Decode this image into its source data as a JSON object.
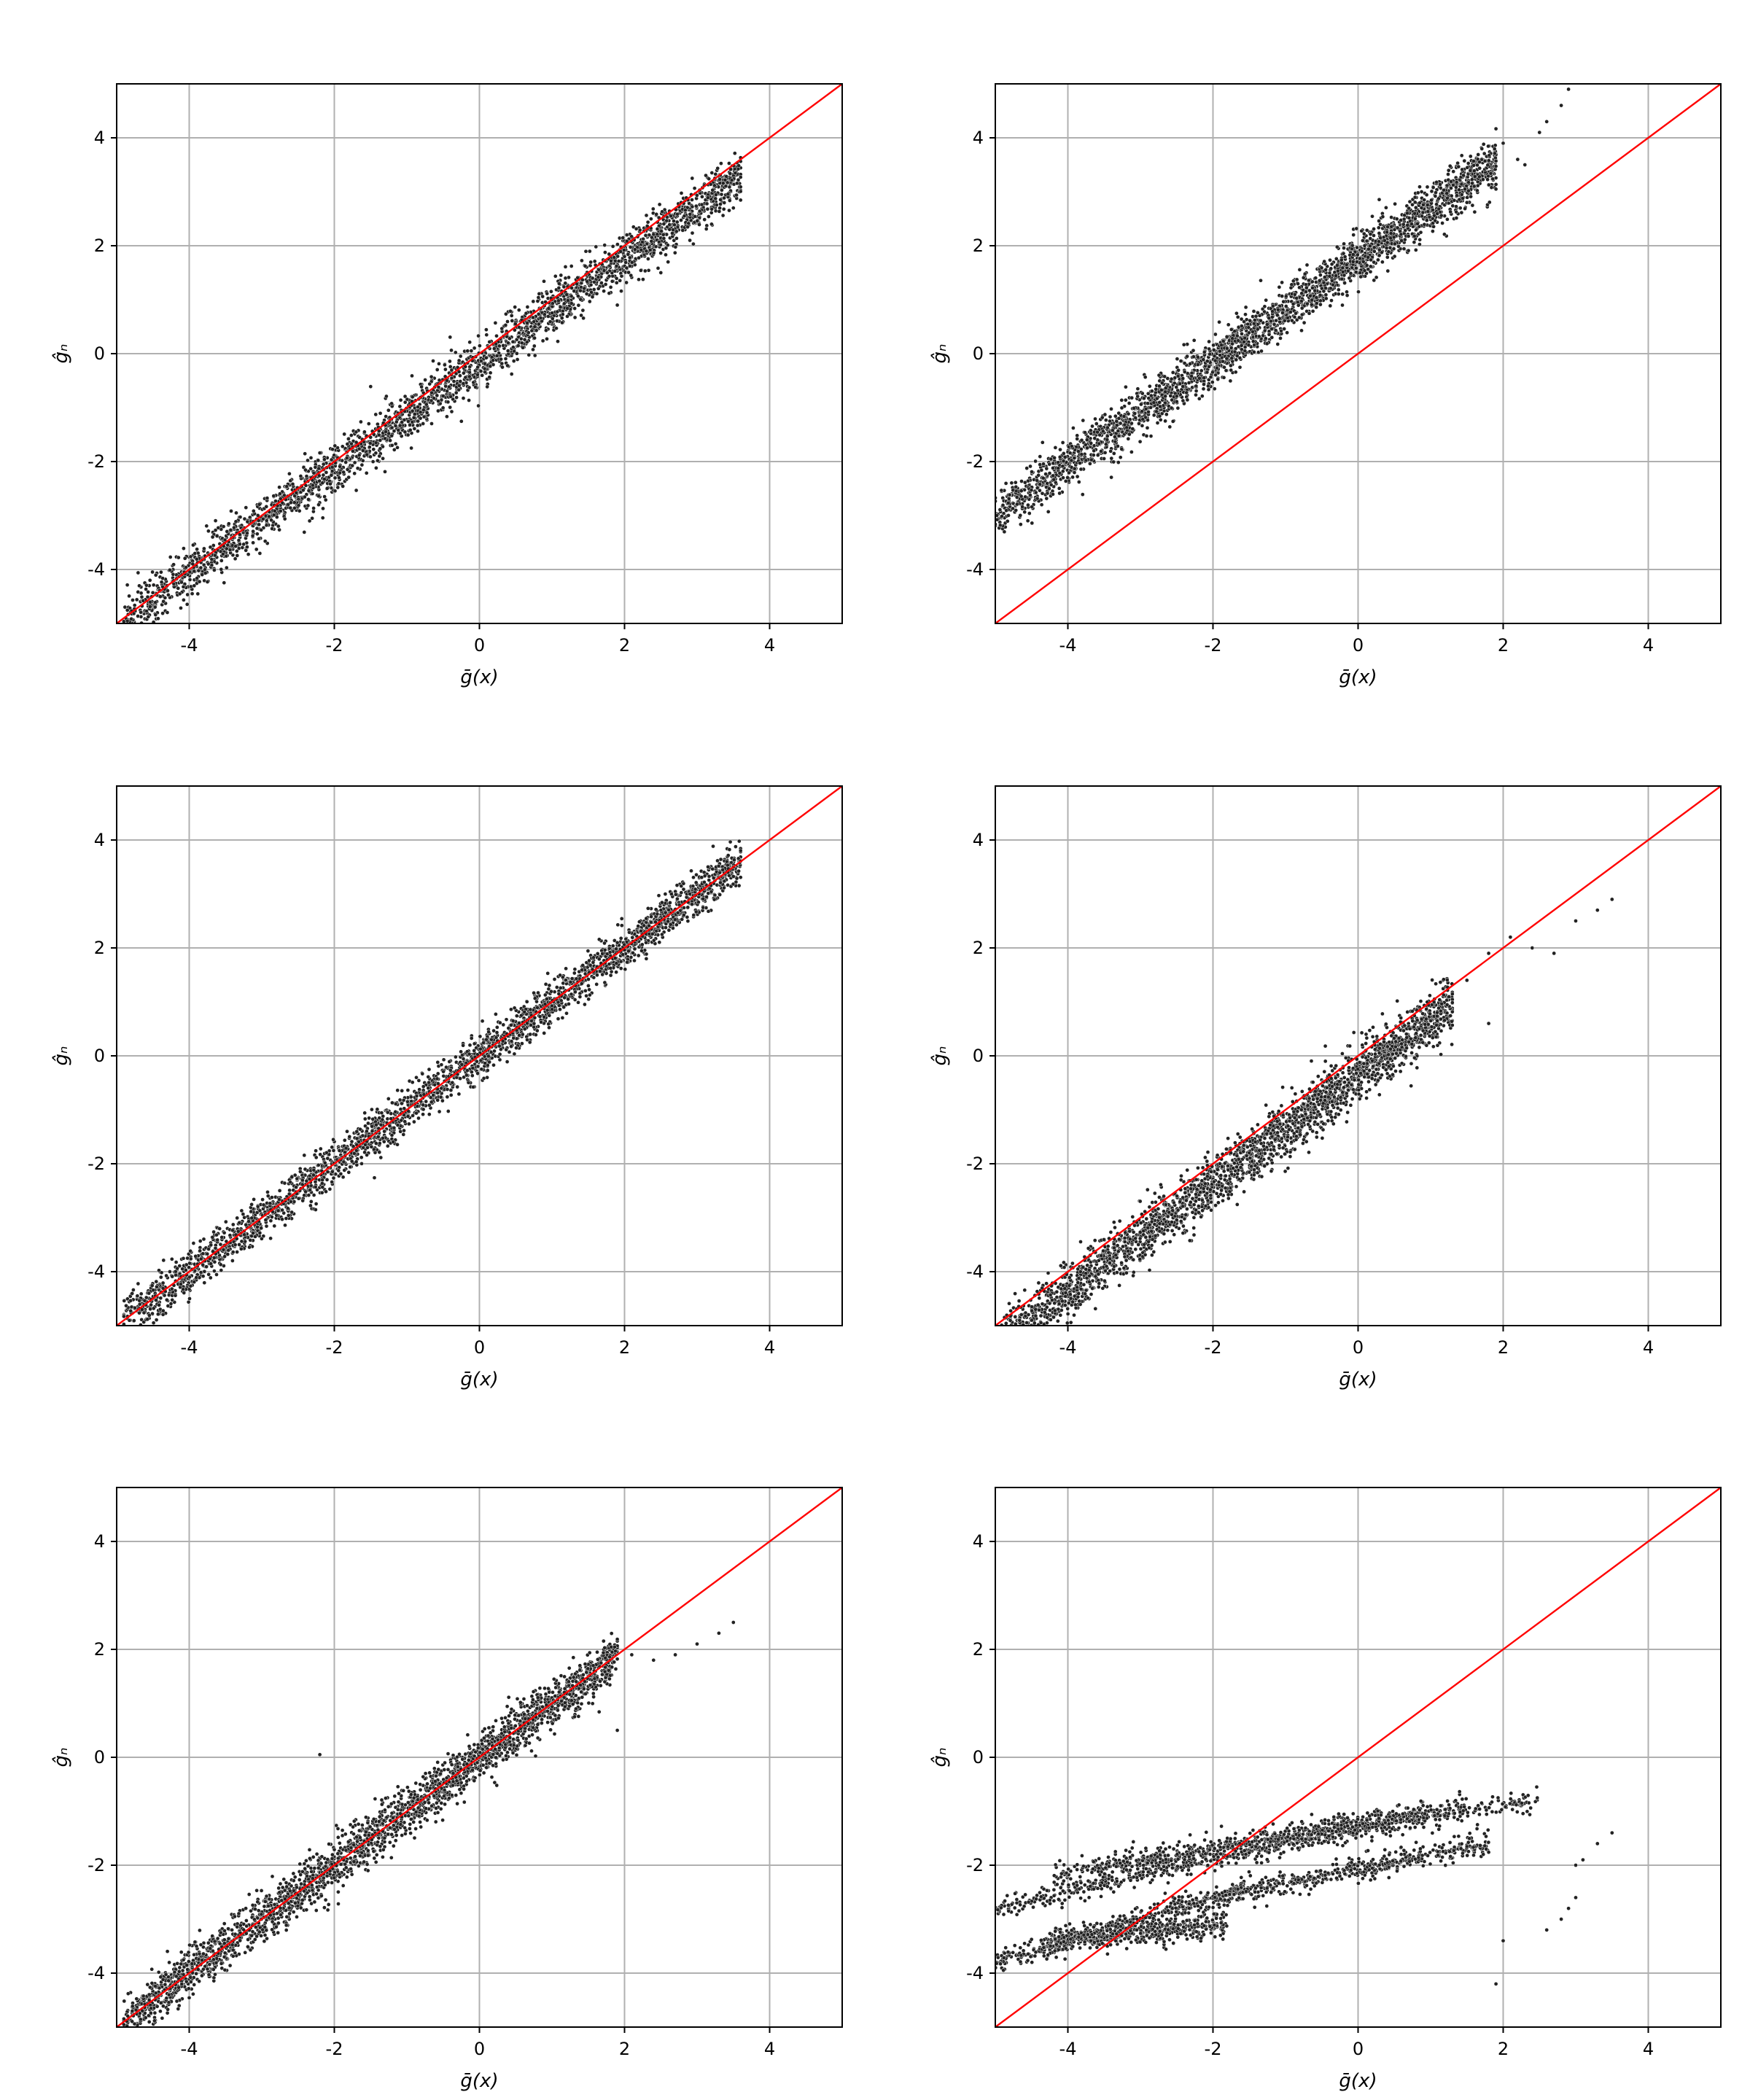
{
  "colors": {
    "points": "#222222",
    "point_edge": "#ffffff",
    "identity_line": "#ff0000",
    "grid": "#b0b0b0",
    "frame": "#000000"
  },
  "chart_data": [
    {
      "type": "scatter",
      "panel": "top-left",
      "xlabel": "ḡ(x)",
      "ylabel": "ĝₙ",
      "xlim": [
        -5,
        5
      ],
      "ylim": [
        -5,
        5
      ],
      "xticks": [
        -4,
        -2,
        0,
        2,
        4
      ],
      "yticks": [
        -4,
        -2,
        0,
        2,
        4
      ],
      "grid": true,
      "reference_line": "y = x",
      "approx_trend": {
        "slope": 0.97,
        "intercept": -0.18,
        "noise": 0.22
      },
      "x_range": [
        -4.9,
        3.6
      ],
      "sparse_tail": [
        [
          2.0,
          1.8
        ],
        [
          2.3,
          1.9
        ],
        [
          2.6,
          1.7
        ],
        [
          2.9,
          2.1
        ],
        [
          3.2,
          2.4
        ],
        [
          3.5,
          2.7
        ],
        [
          2.5,
          1.5
        ],
        [
          1.9,
          0.9
        ]
      ]
    },
    {
      "type": "scatter",
      "panel": "top-right",
      "xlabel": "ḡ(x)",
      "ylabel": "ĝₙ",
      "xlim": [
        -5,
        5
      ],
      "ylim": [
        -5,
        5
      ],
      "xticks": [
        -4,
        -2,
        0,
        2,
        4
      ],
      "yticks": [
        -4,
        -2,
        0,
        2,
        4
      ],
      "grid": true,
      "reference_line": "y = x",
      "approx_trend": {
        "slope": 0.95,
        "intercept": 1.75,
        "noise": 0.22
      },
      "x_range": [
        -5.0,
        1.9
      ],
      "sparse_tail": [
        [
          2.0,
          3.9
        ],
        [
          2.2,
          3.6
        ],
        [
          2.3,
          3.5
        ],
        [
          2.5,
          4.1
        ],
        [
          2.6,
          4.3
        ],
        [
          2.8,
          4.6
        ],
        [
          2.9,
          4.9
        ]
      ]
    },
    {
      "type": "scatter",
      "panel": "middle-left",
      "xlabel": "ḡ(x)",
      "ylabel": "ĝₙ",
      "xlim": [
        -5,
        5
      ],
      "ylim": [
        -5,
        5
      ],
      "xticks": [
        -4,
        -2,
        0,
        2,
        4
      ],
      "yticks": [
        -4,
        -2,
        0,
        2,
        4
      ],
      "grid": true,
      "reference_line": "y = x",
      "approx_trend": {
        "slope": 1.0,
        "intercept": 0.0,
        "noise": 0.2
      },
      "x_range": [
        -4.9,
        3.6
      ],
      "sparse_tail": [
        [
          2.3,
          1.8
        ],
        [
          2.6,
          2.6
        ],
        [
          2.9,
          3.0
        ],
        [
          3.1,
          3.1
        ],
        [
          3.3,
          3.3
        ],
        [
          3.5,
          3.5
        ]
      ]
    },
    {
      "type": "scatter",
      "panel": "middle-right",
      "xlabel": "ḡ(x)",
      "ylabel": "ĝₙ",
      "xlim": [
        -5,
        5
      ],
      "ylim": [
        -5,
        5
      ],
      "xticks": [
        -4,
        -2,
        0,
        2,
        4
      ],
      "yticks": [
        -4,
        -2,
        0,
        2,
        4
      ],
      "grid": true,
      "reference_line": "y = x",
      "approx_trend": {
        "slope": 1.0,
        "intercept": -0.35,
        "noise": 0.25
      },
      "x_range": [
        -5.0,
        1.3
      ],
      "sparse_tail": [
        [
          1.5,
          1.4
        ],
        [
          1.8,
          1.9
        ],
        [
          2.1,
          2.2
        ],
        [
          2.4,
          2.0
        ],
        [
          2.7,
          1.9
        ],
        [
          3.0,
          2.5
        ],
        [
          3.3,
          2.7
        ],
        [
          3.5,
          2.9
        ],
        [
          1.8,
          0.6
        ]
      ]
    },
    {
      "type": "scatter",
      "panel": "bottom-left",
      "xlabel": "ḡ(x)",
      "ylabel": "ĝₙ",
      "xlim": [
        -5,
        5
      ],
      "ylim": [
        -5,
        5
      ],
      "xticks": [
        -4,
        -2,
        0,
        2,
        4
      ],
      "yticks": [
        -4,
        -2,
        0,
        2,
        4
      ],
      "grid": true,
      "reference_line": "y = x",
      "approx_trend": {
        "slope": 1.0,
        "intercept": 0.0,
        "noise": 0.22
      },
      "x_range": [
        -4.9,
        1.9
      ],
      "sparse_tail": [
        [
          2.1,
          1.9
        ],
        [
          2.4,
          1.8
        ],
        [
          2.7,
          1.9
        ],
        [
          3.0,
          2.1
        ],
        [
          3.3,
          2.3
        ],
        [
          3.5,
          2.5
        ],
        [
          1.9,
          0.5
        ],
        [
          -2.2,
          0.05
        ]
      ]
    },
    {
      "type": "scatter",
      "panel": "bottom-right",
      "xlabel": "ḡ(x)",
      "ylabel": "ĝₙ",
      "xlim": [
        -5,
        5
      ],
      "ylim": [
        -5,
        5
      ],
      "xticks": [
        -4,
        -2,
        0,
        2,
        4
      ],
      "yticks": [
        -4,
        -2,
        0,
        2,
        4
      ],
      "grid": true,
      "reference_line": "y = x",
      "bands": [
        {
          "x_range": [
            -5.0,
            0.9
          ],
          "y_start": -2.8,
          "y_end": -1.0
        },
        {
          "x_range": [
            -4.2,
            1.5
          ],
          "y_start": -2.2,
          "y_end": -0.9
        },
        {
          "x_range": [
            -3.5,
            2.5
          ],
          "y_start": -2.0,
          "y_end": -0.8
        },
        {
          "x_range": [
            -4.3,
            -1.8
          ],
          "y_start": -3.4,
          "y_end": -3.1
        },
        {
          "x_range": [
            -5.0,
            -1.5
          ],
          "y_start": -3.8,
          "y_end": -2.4
        },
        {
          "x_range": [
            -2.0,
            1.8
          ],
          "y_start": -2.6,
          "y_end": -1.6
        }
      ],
      "sparse_tail": [
        [
          3.0,
          -2.0
        ],
        [
          3.1,
          -1.9
        ],
        [
          3.3,
          -1.6
        ],
        [
          3.5,
          -1.4
        ],
        [
          2.8,
          -3.0
        ],
        [
          2.9,
          -2.8
        ],
        [
          3.0,
          -2.6
        ],
        [
          2.6,
          -3.2
        ],
        [
          1.9,
          -4.2
        ],
        [
          2.0,
          -3.4
        ]
      ]
    }
  ]
}
